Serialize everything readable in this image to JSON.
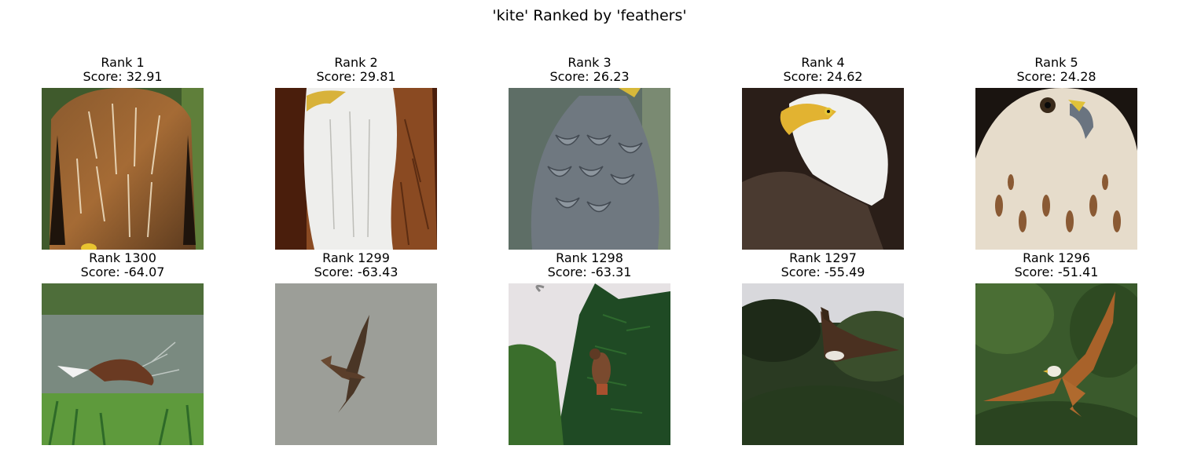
{
  "figure": {
    "title": "'kite' Ranked by 'feathers'"
  },
  "top_row": [
    {
      "rank": "Rank 1",
      "score": "Score: 32.91",
      "subject": "red kite chest feathers close-up"
    },
    {
      "rank": "Rank 2",
      "score": "Score: 29.81",
      "subject": "bald eagle white and brown plumage"
    },
    {
      "rank": "Rank 3",
      "score": "Score: 26.23",
      "subject": "grey eagle perched"
    },
    {
      "rank": "Rank 4",
      "score": "Score: 24.62",
      "subject": "bald eagle head portrait"
    },
    {
      "rank": "Rank 5",
      "score": "Score: 24.28",
      "subject": "hawk face close-up"
    }
  ],
  "bottom_row": [
    {
      "rank": "Rank 1300",
      "score": "Score: -64.07",
      "subject": "kite catching fish in water"
    },
    {
      "rank": "Rank 1299",
      "score": "Score: -63.43",
      "subject": "kite flying against grey sky"
    },
    {
      "rank": "Rank 1298",
      "score": "Score: -63.31",
      "subject": "hawk perched in fir tree"
    },
    {
      "rank": "Rank 1297",
      "score": "Score: -55.49",
      "subject": "eagle flying over trees"
    },
    {
      "rank": "Rank 1296",
      "score": "Score: -51.41",
      "subject": "red kite in flight over forest"
    }
  ],
  "colors": {
    "background": "#ffffff",
    "text": "#000000"
  }
}
